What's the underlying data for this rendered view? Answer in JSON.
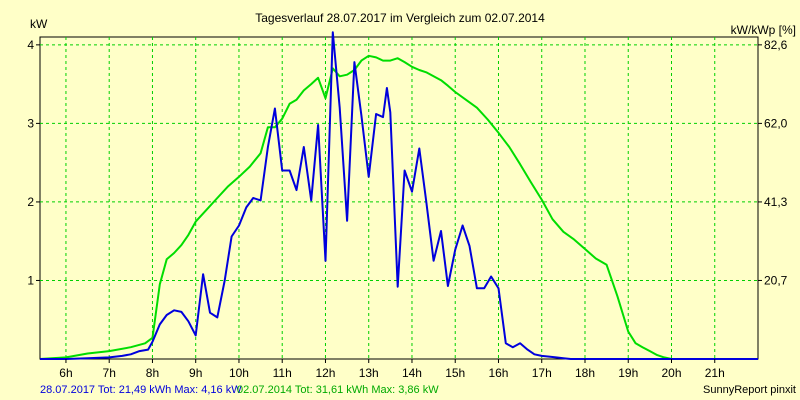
{
  "chart_data": {
    "type": "line",
    "title": "Tagesverlauf 28.07.2017 im Vergleich zum 02.07.2014",
    "ylabel_left": "kW",
    "ylabel_right": "kW/kWp [%]",
    "x_unit": "hour",
    "xlim": [
      5.4,
      22.0
    ],
    "ylim_left": [
      0,
      4.1
    ],
    "x_tick_values": [
      6,
      7,
      8,
      9,
      10,
      11,
      12,
      13,
      14,
      15,
      16,
      17,
      18,
      19,
      20,
      21
    ],
    "x_tick_labels": [
      "6h",
      "7h",
      "8h",
      "9h",
      "10h",
      "11h",
      "12h",
      "13h",
      "14h",
      "15h",
      "16h",
      "17h",
      "18h",
      "19h",
      "20h",
      "21h"
    ],
    "y_tick_values_left": [
      1,
      2,
      3,
      4
    ],
    "y_tick_labels_left": [
      "1",
      "2",
      "3",
      "4"
    ],
    "y_tick_values_right": [
      1,
      2,
      3,
      4
    ],
    "y_tick_labels_right": [
      "20,7",
      "41,3",
      "62,0",
      "82,6"
    ],
    "grid": true,
    "grid_color": "#00d000",
    "series": [
      {
        "name": "28.07.2017",
        "color": "#0000dd",
        "x": [
          5.4,
          6.0,
          6.5,
          7.0,
          7.3,
          7.5,
          7.7,
          7.9,
          8.0,
          8.17,
          8.33,
          8.5,
          8.67,
          8.83,
          9.0,
          9.17,
          9.33,
          9.5,
          9.67,
          9.83,
          10.0,
          10.17,
          10.33,
          10.5,
          10.67,
          10.83,
          11.0,
          11.17,
          11.33,
          11.5,
          11.67,
          11.83,
          12.0,
          12.17,
          12.33,
          12.5,
          12.67,
          12.83,
          13.0,
          13.17,
          13.33,
          13.42,
          13.5,
          13.67,
          13.83,
          14.0,
          14.17,
          14.33,
          14.5,
          14.67,
          14.83,
          15.0,
          15.17,
          15.33,
          15.5,
          15.67,
          15.83,
          16.0,
          16.17,
          16.33,
          16.5,
          16.67,
          16.83,
          17.0,
          17.17,
          17.33,
          17.5,
          17.67,
          17.83,
          18.0,
          18.17,
          18.33,
          18.5,
          18.67,
          18.83,
          19.0,
          19.17,
          19.33,
          19.5,
          19.67,
          19.83,
          20.0,
          20.17,
          20.33,
          20.5,
          20.67,
          20.83,
          21.0,
          21.17,
          21.33,
          21.5,
          21.67,
          21.83,
          22.0
        ],
        "y": [
          0.0,
          0.0,
          0.01,
          0.02,
          0.04,
          0.06,
          0.1,
          0.12,
          0.22,
          0.44,
          0.56,
          0.62,
          0.6,
          0.48,
          0.3,
          1.08,
          0.59,
          0.53,
          1.0,
          1.56,
          1.7,
          1.93,
          2.05,
          2.02,
          2.7,
          3.19,
          2.4,
          2.4,
          2.15,
          2.7,
          2.02,
          2.98,
          1.25,
          4.16,
          3.2,
          1.76,
          3.78,
          3.1,
          2.32,
          3.12,
          3.08,
          3.45,
          3.14,
          0.92,
          2.4,
          2.13,
          2.68,
          2.01,
          1.25,
          1.63,
          0.93,
          1.39,
          1.7,
          1.44,
          0.9,
          0.9,
          1.05,
          0.9,
          0.2,
          0.15,
          0.2,
          0.12,
          0.06,
          0.04,
          0.03,
          0.02,
          0.01,
          0.0,
          0.0,
          0.0,
          0.0,
          0.0,
          0.0,
          0.0,
          0.0,
          0.0,
          0.0,
          0.0,
          0.0,
          0.0,
          0.0,
          0.0,
          0.0,
          0.0,
          0.0,
          0.0,
          0.0,
          0.0,
          0.0,
          0.0,
          0.0,
          0.0,
          0.0,
          0.0
        ],
        "total_label": "28.07.2017 Tot: 21,49 kWh Max: 4,16 kW"
      },
      {
        "name": "02.07.2014",
        "color": "#00dd00",
        "x": [
          5.4,
          6.0,
          6.5,
          7.0,
          7.5,
          7.83,
          8.0,
          8.17,
          8.33,
          8.5,
          8.67,
          8.83,
          9.0,
          9.25,
          9.5,
          9.75,
          10.0,
          10.25,
          10.5,
          10.67,
          10.83,
          11.0,
          11.17,
          11.33,
          11.5,
          11.67,
          11.83,
          12.0,
          12.17,
          12.33,
          12.5,
          12.67,
          12.83,
          13.0,
          13.17,
          13.33,
          13.5,
          13.67,
          13.83,
          14.0,
          14.17,
          14.33,
          14.5,
          14.67,
          14.83,
          15.0,
          15.25,
          15.5,
          15.75,
          16.0,
          16.25,
          16.5,
          16.75,
          17.0,
          17.25,
          17.5,
          17.75,
          18.0,
          18.25,
          18.5,
          18.75,
          19.0,
          19.17,
          19.33,
          19.5,
          19.67,
          19.83,
          20.0,
          20.17,
          20.33,
          20.5,
          20.75,
          21.0,
          21.25,
          21.5,
          22.0
        ],
        "y": [
          0.0,
          0.02,
          0.07,
          0.1,
          0.15,
          0.2,
          0.27,
          0.95,
          1.27,
          1.35,
          1.45,
          1.58,
          1.75,
          1.9,
          2.05,
          2.2,
          2.32,
          2.45,
          2.62,
          2.95,
          2.95,
          3.06,
          3.25,
          3.3,
          3.42,
          3.5,
          3.58,
          3.32,
          3.7,
          3.6,
          3.62,
          3.68,
          3.8,
          3.86,
          3.84,
          3.8,
          3.8,
          3.83,
          3.78,
          3.72,
          3.68,
          3.65,
          3.6,
          3.55,
          3.48,
          3.4,
          3.3,
          3.2,
          3.05,
          2.88,
          2.7,
          2.48,
          2.25,
          2.03,
          1.78,
          1.62,
          1.52,
          1.4,
          1.28,
          1.2,
          0.8,
          0.35,
          0.2,
          0.15,
          0.1,
          0.05,
          0.02,
          0.0,
          0.0,
          0.0,
          0.0,
          0.0,
          0.0,
          0.0,
          0.0,
          0.0
        ],
        "total_label": "02.07.2014 Tot: 31,61 kWh Max: 3,86 kW"
      }
    ],
    "footer_right": "SunnyReport pinxit"
  }
}
